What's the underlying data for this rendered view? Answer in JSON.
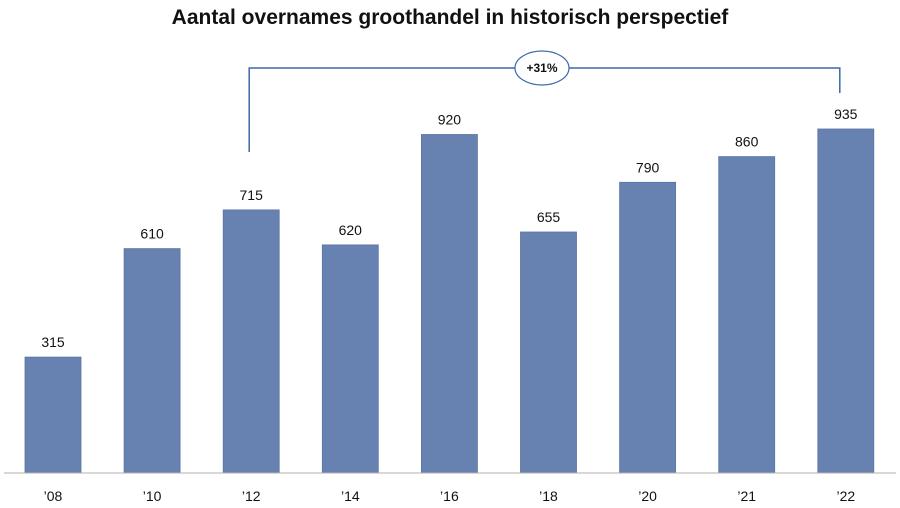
{
  "chart_data": {
    "type": "bar",
    "title": "Aantal overnames groothandel in historisch perspectief",
    "categories": [
      "’08",
      "’10",
      "’12",
      "’14",
      "’16",
      "’18",
      "’20",
      "’21",
      "’22"
    ],
    "values": [
      315,
      610,
      715,
      620,
      920,
      655,
      790,
      860,
      935
    ],
    "xlabel": "",
    "ylabel": "",
    "ylim": [
      0,
      1000
    ],
    "grid": false,
    "legend": "none",
    "bar_color": "#6782b1",
    "axis_color": "#b0b0b0",
    "annotation": {
      "text": "+31%",
      "from_category": "’12",
      "to_category": "’22",
      "line_color": "#3c68a8"
    }
  }
}
